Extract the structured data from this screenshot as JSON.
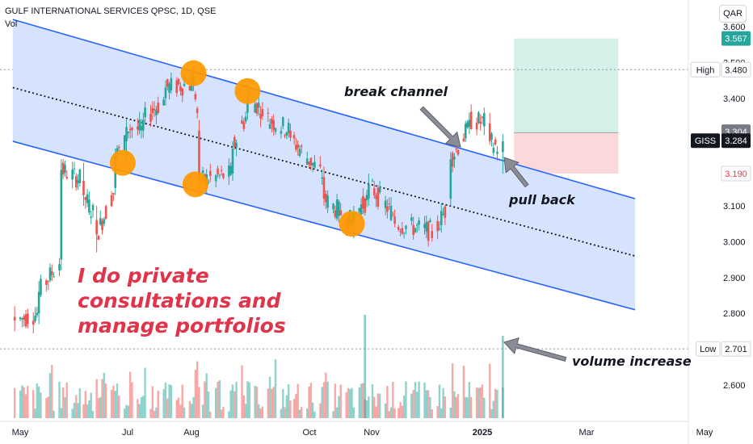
{
  "header": {
    "title": "GULF INTERNATIONAL SERVICES QPSC, 1D, QSE",
    "volume_label": "Vol"
  },
  "currency_button": "QAR",
  "annotations": {
    "break_channel": "break channel",
    "pull_back": "pull back",
    "volume_increase": "volume increase",
    "promo_lines": [
      "I do private",
      "consultations and",
      "manage portfolios"
    ]
  },
  "price_badges": {
    "high": {
      "label": "High",
      "value": "3.480"
    },
    "low": {
      "label": "Low",
      "value": "2.701"
    },
    "target": {
      "value": "3.567"
    },
    "entry": {
      "value": "3.304"
    },
    "last": {
      "label": "GISS",
      "value": "3.284"
    },
    "stop": {
      "value": "3.190"
    }
  },
  "colors": {
    "up": "#26a69a",
    "down": "#ef5350",
    "channel_line": "#2962ff",
    "channel_fill": "#d4e2fe",
    "marker": "#ff9800",
    "target_zone": "#d5efe9",
    "stop_zone": "#fbd9db",
    "promo_text": "#e0344a",
    "badge_green": "#26a69a",
    "badge_red": "#f23645",
    "badge_dark": "#131722",
    "badge_gray": "#787b86"
  },
  "chart_data": {
    "type": "candlestick",
    "title": "GULF INTERNATIONAL SERVICES QPSC, 1D, QSE",
    "currency": "QAR",
    "y_axis": {
      "ticks": [
        "3.600",
        "3.500",
        "3.400",
        "3.300",
        "3.200",
        "3.100",
        "3.000",
        "2.900",
        "2.800",
        "2.700",
        "2.600"
      ],
      "range": [
        2.55,
        3.63
      ]
    },
    "x_axis": {
      "ticks": [
        "May",
        "Jul",
        "Aug",
        "Oct",
        "Nov",
        "2025",
        "Mar",
        "May"
      ]
    },
    "price_levels": {
      "high": 3.48,
      "low": 2.701,
      "target": 3.567,
      "entry": 3.304,
      "last": 3.284,
      "stop": 3.19
    },
    "channel": {
      "upper": [
        {
          "date": "2024-04-24",
          "price": 3.62
        },
        {
          "date": "2025-03-24",
          "price": 3.12
        }
      ],
      "mid": [
        {
          "date": "2024-04-24",
          "price": 3.43
        },
        {
          "date": "2025-03-24",
          "price": 2.96
        }
      ],
      "lower": [
        {
          "date": "2024-04-24",
          "price": 3.28
        },
        {
          "date": "2025-03-24",
          "price": 2.81
        }
      ]
    },
    "highlighted_touches": [
      {
        "date": "2024-06-22",
        "price": 3.22
      },
      {
        "date": "2024-07-30",
        "price": 3.47
      },
      {
        "date": "2024-07-31",
        "price": 3.16
      },
      {
        "date": "2024-08-28",
        "price": 3.42
      },
      {
        "date": "2024-10-23",
        "price": 3.05
      }
    ],
    "candles": [
      {
        "d": "2024-04-25",
        "o": 2.79,
        "h": 2.82,
        "l": 2.75,
        "c": 2.78
      },
      {
        "d": "2024-05-08",
        "o": 2.8,
        "h": 2.89,
        "l": 2.77,
        "c": 2.86
      },
      {
        "d": "2024-05-20",
        "o": 2.95,
        "h": 3.23,
        "l": 2.92,
        "c": 3.2
      },
      {
        "d": "2024-06-01",
        "o": 3.17,
        "h": 3.22,
        "l": 3.1,
        "c": 3.13
      },
      {
        "d": "2024-06-08",
        "o": 3.06,
        "h": 3.1,
        "l": 2.97,
        "c": 3.02
      },
      {
        "d": "2024-06-18",
        "o": 3.15,
        "h": 3.26,
        "l": 3.13,
        "c": 3.24
      },
      {
        "d": "2024-06-24",
        "o": 3.28,
        "h": 3.34,
        "l": 3.22,
        "c": 3.32
      },
      {
        "d": "2024-07-03",
        "o": 3.31,
        "h": 3.36,
        "l": 3.29,
        "c": 3.34
      },
      {
        "d": "2024-07-15",
        "o": 3.4,
        "h": 3.45,
        "l": 3.38,
        "c": 3.43
      },
      {
        "d": "2024-07-30",
        "o": 3.44,
        "h": 3.49,
        "l": 3.42,
        "c": 3.46
      },
      {
        "d": "2024-08-02",
        "o": 3.31,
        "h": 3.34,
        "l": 3.13,
        "c": 3.17
      },
      {
        "d": "2024-08-20",
        "o": 3.19,
        "h": 3.28,
        "l": 3.17,
        "c": 3.26
      },
      {
        "d": "2024-08-28",
        "o": 3.36,
        "h": 3.44,
        "l": 3.34,
        "c": 3.4
      },
      {
        "d": "2024-09-05",
        "o": 3.37,
        "h": 3.39,
        "l": 3.34,
        "c": 3.35
      },
      {
        "d": "2024-09-20",
        "o": 3.31,
        "h": 3.33,
        "l": 3.28,
        "c": 3.29
      },
      {
        "d": "2024-10-08",
        "o": 3.18,
        "h": 3.21,
        "l": 3.1,
        "c": 3.12
      },
      {
        "d": "2024-10-24",
        "o": 3.05,
        "h": 3.1,
        "l": 3.01,
        "c": 3.08
      },
      {
        "d": "2024-11-01",
        "o": 3.12,
        "h": 3.19,
        "l": 3.1,
        "c": 3.16
      },
      {
        "d": "2024-11-15",
        "o": 3.07,
        "h": 3.09,
        "l": 3.04,
        "c": 3.05
      },
      {
        "d": "2024-12-05",
        "o": 3.03,
        "h": 3.05,
        "l": 3.0,
        "c": 3.01
      },
      {
        "d": "2024-12-15",
        "o": 3.12,
        "h": 3.25,
        "l": 3.1,
        "c": 3.23
      },
      {
        "d": "2024-12-25",
        "o": 3.32,
        "h": 3.36,
        "l": 3.3,
        "c": 3.34
      },
      {
        "d": "2025-01-05",
        "o": 3.33,
        "h": 3.36,
        "l": 3.27,
        "c": 3.28
      },
      {
        "d": "2025-01-12",
        "o": 3.25,
        "h": 3.3,
        "l": 3.19,
        "c": 3.28
      }
    ],
    "volume_peaks": [
      {
        "d": "2024-10-30",
        "note": "spike"
      },
      {
        "d": "2025-01-12",
        "note": "volume increase"
      }
    ]
  }
}
